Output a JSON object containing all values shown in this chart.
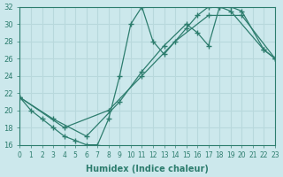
{
  "bg_color": "#cce8ec",
  "line_color": "#2d7d6e",
  "grid_color": "#b8d8dc",
  "xlabel": "Humidex (Indice chaleur)",
  "xlim": [
    0,
    23
  ],
  "ylim": [
    16,
    32
  ],
  "xticks": [
    0,
    1,
    2,
    3,
    4,
    5,
    6,
    7,
    8,
    9,
    10,
    11,
    12,
    13,
    14,
    15,
    16,
    17,
    18,
    19,
    20,
    21,
    22,
    23
  ],
  "yticks": [
    16,
    18,
    20,
    22,
    24,
    26,
    28,
    30,
    32
  ],
  "line_series": [
    {
      "x": [
        0,
        1,
        2,
        3,
        4,
        5,
        6,
        7,
        8,
        9,
        10,
        11,
        12,
        13,
        15,
        16,
        17,
        18,
        19,
        22,
        23
      ],
      "y": [
        21.5,
        20,
        19,
        18,
        17,
        16.5,
        16,
        16,
        19,
        24,
        30,
        32,
        28,
        26.5,
        29.5,
        31,
        32,
        32,
        31.5,
        27,
        26
      ]
    },
    {
      "x": [
        0,
        3,
        6,
        9,
        11,
        13,
        15,
        16,
        17,
        18,
        19,
        20,
        22,
        23
      ],
      "y": [
        21.5,
        19,
        17,
        21,
        24.5,
        27.5,
        30,
        29,
        27.5,
        32,
        32,
        31.5,
        27,
        26
      ]
    },
    {
      "x": [
        0,
        4,
        8,
        11,
        14,
        17,
        20,
        23
      ],
      "y": [
        21.5,
        18,
        20,
        24,
        28,
        31,
        31,
        26
      ]
    }
  ]
}
